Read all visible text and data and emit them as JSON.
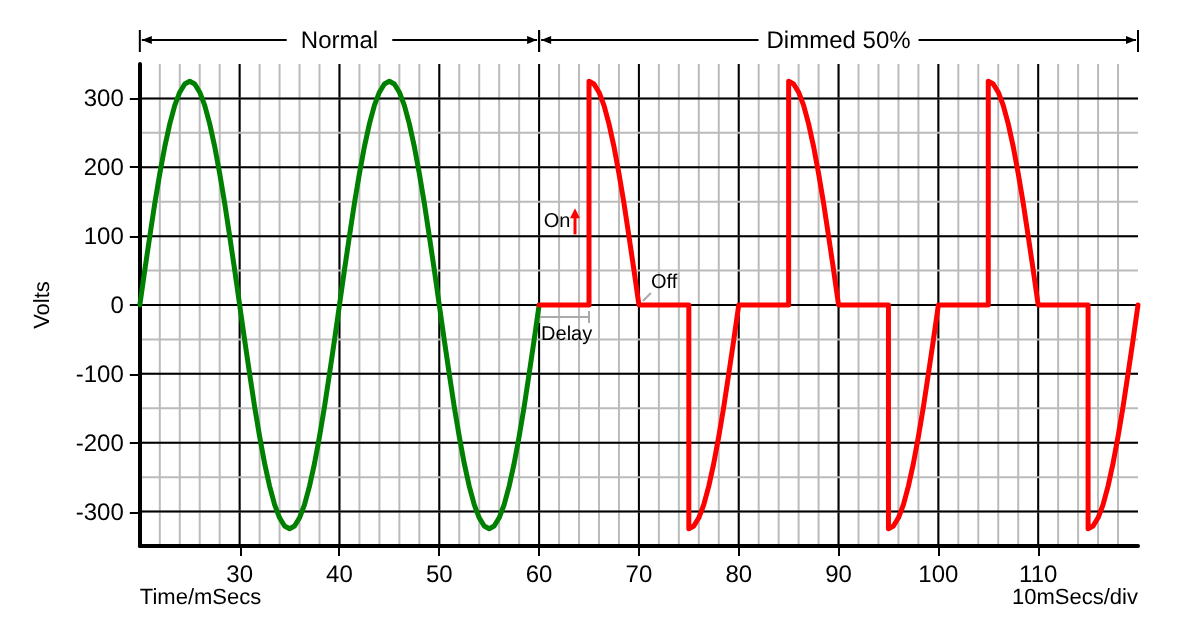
{
  "chart_data": {
    "type": "line",
    "xlabel": "Time/mSecs",
    "ylabel": "Volts",
    "annotations": [
      "Normal",
      "Dimmed 50%",
      {
        "text": "On",
        "x": 65,
        "y": 120
      },
      {
        "text": "Off",
        "x": 70,
        "y": 0
      },
      {
        "text": "Delay",
        "x": 62.5,
        "y": 0
      },
      "10mSecs/div"
    ],
    "xlim": [
      20,
      120
    ],
    "xticks": [
      30,
      40,
      50,
      60,
      70,
      80,
      90,
      100,
      110
    ],
    "ylim": [
      -350,
      350
    ],
    "yticks": [
      -300,
      -200,
      -100,
      0,
      100,
      200,
      300
    ],
    "grid": true,
    "marker": "none",
    "line_style": "solid",
    "series": [
      {
        "color": "#008000",
        "x": [
          20,
          20.5,
          21,
          21.5,
          22,
          22.5,
          23,
          23.5,
          24,
          24.5,
          25,
          25.5,
          26,
          26.5,
          27,
          27.5,
          28,
          28.5,
          29,
          29.5,
          30,
          30.5,
          31,
          31.5,
          32,
          32.5,
          33,
          33.5,
          34,
          34.5,
          35,
          35.5,
          36,
          36.5,
          37,
          37.5,
          38,
          38.5,
          39,
          39.5,
          40,
          40.5,
          41,
          41.5,
          42,
          42.5,
          43,
          43.5,
          44,
          44.5,
          45,
          45.5,
          46,
          46.5,
          47,
          47.5,
          48,
          48.5,
          49,
          49.5,
          50,
          50.5,
          51,
          51.5,
          52,
          52.5,
          53,
          53.5,
          54,
          54.5,
          55,
          55.5,
          56,
          56.5,
          57,
          57.5,
          58,
          58.5,
          59,
          59.5,
          60
        ],
        "values": [
          0,
          51,
          100,
          148,
          191,
          230,
          263,
          290,
          309,
          321,
          325,
          321,
          309,
          290,
          263,
          230,
          191,
          148,
          100,
          51,
          0,
          -51,
          -100,
          -148,
          -191,
          -230,
          -263,
          -290,
          -309,
          -321,
          -325,
          -321,
          -309,
          -290,
          -263,
          -230,
          -191,
          -148,
          -100,
          -51,
          0,
          51,
          100,
          148,
          191,
          230,
          263,
          290,
          309,
          321,
          325,
          321,
          309,
          290,
          263,
          230,
          191,
          148,
          100,
          51,
          0,
          -51,
          -100,
          -148,
          -191,
          -230,
          -263,
          -290,
          -309,
          -321,
          -325,
          -321,
          -309,
          -290,
          -263,
          -230,
          -191,
          -148,
          -100,
          -51,
          0
        ]
      },
      {
        "color": "#ff0000",
        "x": [
          60,
          65,
          65,
          65.5,
          66,
          66.5,
          67,
          67.5,
          68,
          68.5,
          69,
          69.5,
          70,
          75,
          75,
          75.5,
          76,
          76.5,
          77,
          77.5,
          78,
          78.5,
          79,
          79.5,
          80,
          85,
          85,
          85.5,
          86,
          86.5,
          87,
          87.5,
          88,
          88.5,
          89,
          89.5,
          90,
          95,
          95,
          95.5,
          96,
          96.5,
          97,
          97.5,
          98,
          98.5,
          99,
          99.5,
          100,
          105,
          105,
          105.5,
          106,
          106.5,
          107,
          107.5,
          108,
          108.5,
          109,
          109.5,
          110,
          115,
          115,
          115.5,
          116,
          116.5,
          117,
          117.5,
          118,
          118.5,
          119,
          119.5,
          120
        ],
        "values": [
          0,
          0,
          325,
          321,
          309,
          290,
          263,
          230,
          191,
          148,
          100,
          51,
          0,
          0,
          -325,
          -321,
          -309,
          -290,
          -263,
          -230,
          -191,
          -148,
          -100,
          -51,
          0,
          0,
          325,
          321,
          309,
          290,
          263,
          230,
          191,
          148,
          100,
          51,
          0,
          0,
          -325,
          -321,
          -309,
          -290,
          -263,
          -230,
          -191,
          -148,
          -100,
          -51,
          0,
          0,
          325,
          321,
          309,
          290,
          263,
          230,
          191,
          148,
          100,
          51,
          0,
          0,
          -325,
          -321,
          -309,
          -290,
          -263,
          -230,
          -191,
          -148,
          -100,
          -51,
          0
        ]
      }
    ]
  }
}
